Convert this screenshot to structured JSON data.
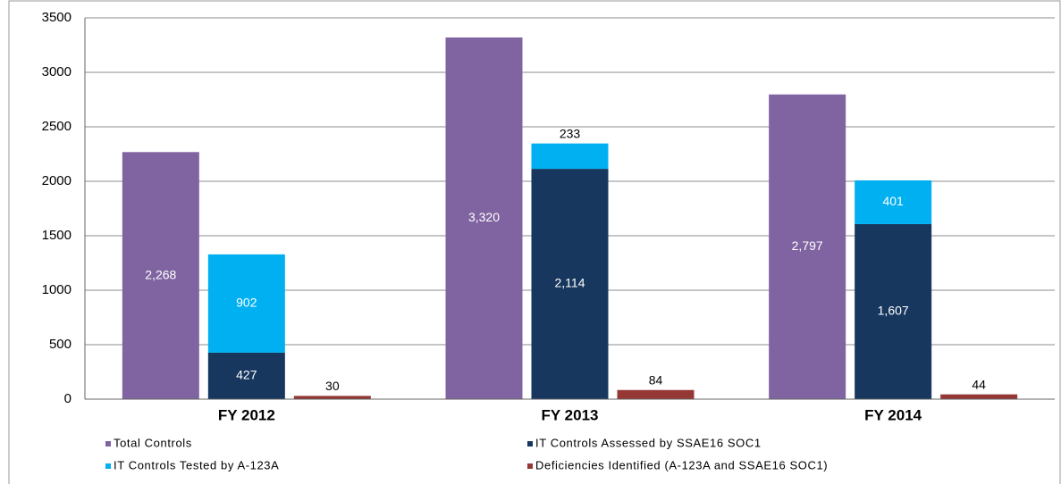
{
  "chart_data": {
    "type": "bar",
    "categories": [
      "FY 2012",
      "FY 2013",
      "FY 2014"
    ],
    "series": [
      {
        "name": "Total Controls",
        "color": "#8064a2",
        "values": [
          2268,
          3320,
          2797
        ],
        "value_labels": [
          "2,268",
          "3,320",
          "2,797"
        ]
      },
      {
        "name": "IT Controls Assessed by SSAE16 SOC1",
        "color": "#17375e",
        "values": [
          427,
          2114,
          1607
        ],
        "value_labels": [
          "427",
          "2,114",
          "1,607"
        ]
      },
      {
        "name": "IT Controls Tested by A-123A",
        "color": "#00b0f0",
        "values": [
          902,
          233,
          401
        ],
        "stacked_on": "IT Controls Assessed by SSAE16 SOC1"
      },
      {
        "name": "Deficiencies Identified (A-123A and SSAE16 SOC1)",
        "color": "#953735",
        "values": [
          30,
          84,
          44
        ]
      }
    ],
    "ylim": [
      0,
      3500
    ],
    "yticks": [
      0,
      500,
      1000,
      1500,
      2000,
      2500,
      3000,
      3500
    ],
    "grid": true,
    "legend": "bottom"
  }
}
